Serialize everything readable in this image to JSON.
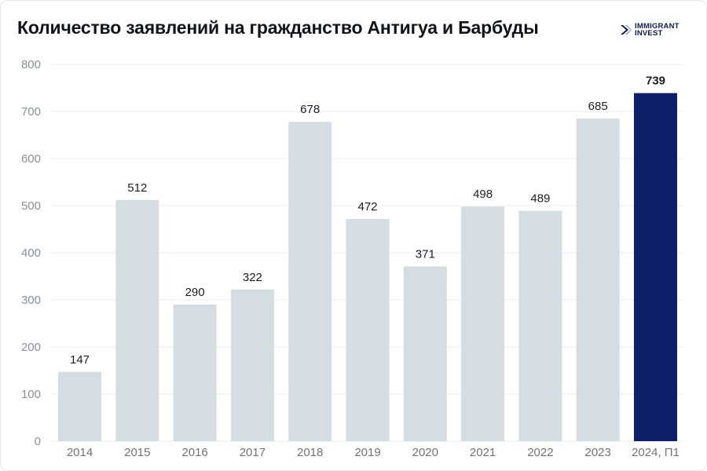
{
  "header": {
    "title": "Количество заявлений на гражданство Антигуа и Барбуды",
    "logo_line1": "IMMIGRANT",
    "logo_line2": "INVEST"
  },
  "colors": {
    "bar": "#d4dde1",
    "highlight_bar": "#0d1f6b",
    "logo": "#0d1a4f"
  },
  "chart_data": {
    "type": "bar",
    "title": "Количество заявлений на гражданство Антигуа и Барбуды",
    "xlabel": "",
    "ylabel": "",
    "categories": [
      "2014",
      "2015",
      "2016",
      "2017",
      "2018",
      "2019",
      "2020",
      "2021",
      "2022",
      "2023",
      "2024, П1"
    ],
    "values": [
      147,
      512,
      290,
      322,
      678,
      472,
      371,
      498,
      489,
      685,
      739
    ],
    "highlight_index": 10,
    "ylim": [
      0,
      800
    ],
    "yticks": [
      0,
      100,
      200,
      300,
      400,
      500,
      600,
      700,
      800
    ],
    "grid": true,
    "data_labels": true
  }
}
